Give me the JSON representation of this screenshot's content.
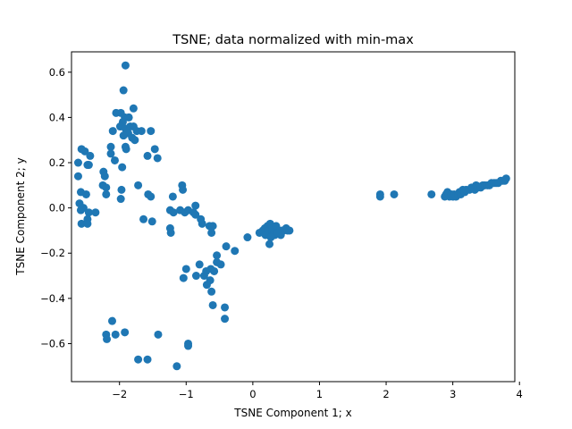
{
  "chart_data": {
    "type": "scatter",
    "title": "TSNE; data normalized with min-max",
    "xlabel": "TSNE Component 1; x",
    "ylabel": "TSNE Component 2; y",
    "xlim": [
      -2.72,
      3.93
    ],
    "ylim": [
      -0.768,
      0.69
    ],
    "xticks": [
      -2,
      -1,
      0,
      1,
      2,
      3,
      4
    ],
    "xtick_labels": [
      "−2",
      "−1",
      "0",
      "1",
      "2",
      "3",
      "4"
    ],
    "yticks": [
      -0.6,
      -0.4,
      -0.2,
      0.0,
      0.2,
      0.4,
      0.6
    ],
    "ytick_labels": [
      "−0.6",
      "−0.4",
      "−0.2",
      "0.0",
      "0.2",
      "0.4",
      "0.6"
    ],
    "grid": false,
    "color": "#1f77b4",
    "points": [
      [
        -1.91,
        0.63
      ],
      [
        -1.94,
        0.52
      ],
      [
        -1.79,
        0.44
      ],
      [
        -1.98,
        0.42
      ],
      [
        -2.05,
        0.42
      ],
      [
        -1.92,
        0.4
      ],
      [
        -1.86,
        0.4
      ],
      [
        -1.95,
        0.38
      ],
      [
        -1.99,
        0.36
      ],
      [
        -1.91,
        0.35
      ],
      [
        -1.84,
        0.36
      ],
      [
        -1.79,
        0.36
      ],
      [
        -1.74,
        0.34
      ],
      [
        -1.87,
        0.33
      ],
      [
        -1.94,
        0.32
      ],
      [
        -1.81,
        0.31
      ],
      [
        -1.77,
        0.3
      ],
      [
        -1.67,
        0.34
      ],
      [
        -2.1,
        0.34
      ],
      [
        -1.53,
        0.34
      ],
      [
        -1.91,
        0.27
      ],
      [
        -2.13,
        0.27
      ],
      [
        -1.9,
        0.26
      ],
      [
        -2.13,
        0.24
      ],
      [
        -1.47,
        0.26
      ],
      [
        -1.58,
        0.23
      ],
      [
        -1.43,
        0.22
      ],
      [
        -2.07,
        0.21
      ],
      [
        -1.96,
        0.18
      ],
      [
        -2.52,
        0.25
      ],
      [
        -2.44,
        0.23
      ],
      [
        -2.57,
        0.26
      ],
      [
        -2.62,
        0.2
      ],
      [
        -2.48,
        0.19
      ],
      [
        -2.46,
        0.19
      ],
      [
        -2.24,
        0.16
      ],
      [
        -2.22,
        0.14
      ],
      [
        -2.62,
        0.14
      ],
      [
        -2.25,
        0.1
      ],
      [
        -2.2,
        0.09
      ],
      [
        -2.2,
        0.06
      ],
      [
        -2.58,
        0.07
      ],
      [
        -2.5,
        0.06
      ],
      [
        -1.97,
        0.08
      ],
      [
        -1.72,
        0.1
      ],
      [
        -1.57,
        0.06
      ],
      [
        -1.53,
        0.05
      ],
      [
        -1.98,
        0.04
      ],
      [
        -2.6,
        0.02
      ],
      [
        -2.54,
        0.0
      ],
      [
        -2.58,
        -0.01
      ],
      [
        -2.46,
        -0.02
      ],
      [
        -2.36,
        -0.02
      ],
      [
        -2.48,
        -0.05
      ],
      [
        -2.57,
        -0.07
      ],
      [
        -2.48,
        -0.07
      ],
      [
        -1.64,
        -0.05
      ],
      [
        -1.51,
        -0.06
      ],
      [
        -1.24,
        -0.01
      ],
      [
        -1.19,
        -0.02
      ],
      [
        -1.2,
        0.05
      ],
      [
        -1.09,
        -0.01
      ],
      [
        -1.02,
        -0.02
      ],
      [
        -0.97,
        -0.01
      ],
      [
        -1.06,
        0.1
      ],
      [
        -1.05,
        0.08
      ],
      [
        -0.86,
        0.01
      ],
      [
        -0.86,
        -0.03
      ],
      [
        -0.89,
        -0.02
      ],
      [
        -0.78,
        -0.05
      ],
      [
        -0.76,
        -0.07
      ],
      [
        -0.65,
        -0.08
      ],
      [
        -0.6,
        -0.08
      ],
      [
        -1.24,
        -0.09
      ],
      [
        -1.23,
        -0.11
      ],
      [
        -0.62,
        -0.11
      ],
      [
        -0.4,
        -0.17
      ],
      [
        -0.27,
        -0.19
      ],
      [
        -0.08,
        -0.13
      ],
      [
        -0.54,
        -0.21
      ],
      [
        -0.54,
        -0.24
      ],
      [
        -0.48,
        -0.25
      ],
      [
        -0.8,
        -0.25
      ],
      [
        -0.7,
        -0.28
      ],
      [
        -0.63,
        -0.27
      ],
      [
        -0.58,
        -0.28
      ],
      [
        -1.0,
        -0.27
      ],
      [
        -0.85,
        -0.3
      ],
      [
        -0.73,
        -0.3
      ],
      [
        -0.64,
        -0.32
      ],
      [
        -1.04,
        -0.31
      ],
      [
        -0.69,
        -0.34
      ],
      [
        -0.62,
        -0.37
      ],
      [
        -0.6,
        -0.43
      ],
      [
        -0.42,
        -0.44
      ],
      [
        -0.42,
        -0.49
      ],
      [
        -2.11,
        -0.5
      ],
      [
        -1.92,
        -0.55
      ],
      [
        -2.06,
        -0.56
      ],
      [
        -2.2,
        -0.56
      ],
      [
        -2.19,
        -0.58
      ],
      [
        -1.42,
        -0.56
      ],
      [
        -0.97,
        -0.6
      ],
      [
        -0.97,
        -0.61
      ],
      [
        -1.72,
        -0.67
      ],
      [
        -1.58,
        -0.67
      ],
      [
        -1.14,
        -0.7
      ],
      [
        0.1,
        -0.11
      ],
      [
        0.15,
        -0.1
      ],
      [
        0.18,
        -0.09
      ],
      [
        0.22,
        -0.08
      ],
      [
        0.24,
        -0.1
      ],
      [
        0.26,
        -0.07
      ],
      [
        0.28,
        -0.08
      ],
      [
        0.29,
        -0.09
      ],
      [
        0.3,
        -0.1
      ],
      [
        0.32,
        -0.11
      ],
      [
        0.33,
        -0.12
      ],
      [
        0.35,
        -0.08
      ],
      [
        0.37,
        -0.11
      ],
      [
        0.4,
        -0.1
      ],
      [
        0.42,
        -0.12
      ],
      [
        0.44,
        -0.1
      ],
      [
        0.46,
        -0.1
      ],
      [
        0.5,
        -0.09
      ],
      [
        0.52,
        -0.1
      ],
      [
        0.55,
        -0.1
      ],
      [
        0.19,
        -0.12
      ],
      [
        0.27,
        -0.13
      ],
      [
        0.25,
        -0.16
      ],
      [
        0.38,
        -0.11
      ],
      [
        1.91,
        0.06
      ],
      [
        1.91,
        0.05
      ],
      [
        2.12,
        0.06
      ],
      [
        2.68,
        0.06
      ],
      [
        2.88,
        0.05
      ],
      [
        2.9,
        0.06
      ],
      [
        2.92,
        0.07
      ],
      [
        2.95,
        0.05
      ],
      [
        2.98,
        0.06
      ],
      [
        3.0,
        0.05
      ],
      [
        3.02,
        0.06
      ],
      [
        3.05,
        0.05
      ],
      [
        3.08,
        0.06
      ],
      [
        3.1,
        0.07
      ],
      [
        3.12,
        0.06
      ],
      [
        3.15,
        0.08
      ],
      [
        3.18,
        0.07
      ],
      [
        3.2,
        0.08
      ],
      [
        3.25,
        0.08
      ],
      [
        3.28,
        0.09
      ],
      [
        3.3,
        0.09
      ],
      [
        3.33,
        0.08
      ],
      [
        3.35,
        0.1
      ],
      [
        3.38,
        0.09
      ],
      [
        3.42,
        0.09
      ],
      [
        3.45,
        0.1
      ],
      [
        3.48,
        0.1
      ],
      [
        3.52,
        0.1
      ],
      [
        3.55,
        0.1
      ],
      [
        3.58,
        0.11
      ],
      [
        3.62,
        0.11
      ],
      [
        3.65,
        0.11
      ],
      [
        3.68,
        0.11
      ],
      [
        3.72,
        0.12
      ],
      [
        3.75,
        0.12
      ],
      [
        3.78,
        0.12
      ],
      [
        3.8,
        0.13
      ]
    ]
  }
}
